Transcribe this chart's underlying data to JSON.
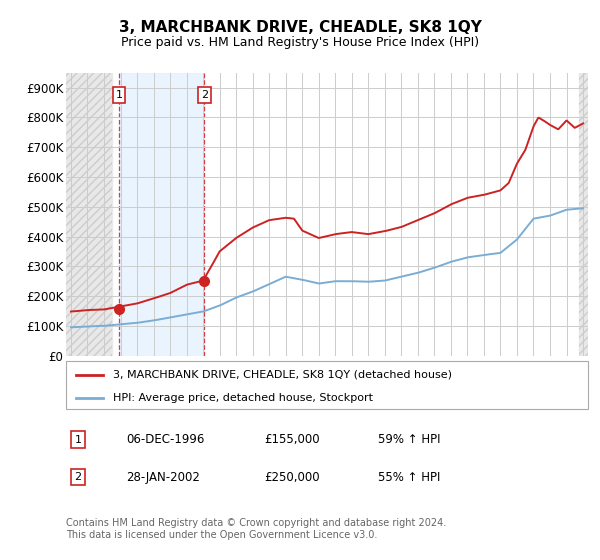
{
  "title": "3, MARCHBANK DRIVE, CHEADLE, SK8 1QY",
  "subtitle": "Price paid vs. HM Land Registry's House Price Index (HPI)",
  "hpi_color": "#7aadd4",
  "price_color": "#cc2222",
  "marker_color": "#cc2222",
  "purchase1": {
    "date_x": 1996.92,
    "price": 155000,
    "label": "1",
    "date_str": "06-DEC-1996",
    "pct": "59% ↑ HPI"
  },
  "purchase2": {
    "date_x": 2002.08,
    "price": 250000,
    "label": "2",
    "date_str": "28-JAN-2002",
    "pct": "55% ↑ HPI"
  },
  "legend_line1": "3, MARCHBANK DRIVE, CHEADLE, SK8 1QY (detached house)",
  "legend_line2": "HPI: Average price, detached house, Stockport",
  "footer": "Contains HM Land Registry data © Crown copyright and database right 2024.\nThis data is licensed under the Open Government Licence v3.0.",
  "xlim_start": 1993.7,
  "xlim_end": 2025.3,
  "ylim": [
    0,
    950000
  ],
  "yticks": [
    0,
    100000,
    200000,
    300000,
    400000,
    500000,
    600000,
    700000,
    800000,
    900000
  ],
  "ytick_labels": [
    "£0",
    "£100K",
    "£200K",
    "£300K",
    "£400K",
    "£500K",
    "£600K",
    "£700K",
    "£800K",
    "£900K"
  ],
  "xticks": [
    1994,
    1995,
    1996,
    1997,
    1998,
    1999,
    2000,
    2001,
    2002,
    2003,
    2004,
    2005,
    2006,
    2007,
    2008,
    2009,
    2010,
    2011,
    2012,
    2013,
    2014,
    2015,
    2016,
    2017,
    2018,
    2019,
    2020,
    2021,
    2022,
    2023,
    2024,
    2025
  ],
  "hpi_years": [
    1994,
    1995,
    1996,
    1997,
    1998,
    1999,
    2000,
    2001,
    2002,
    2003,
    2004,
    2005,
    2006,
    2007,
    2008,
    2009,
    2010,
    2011,
    2012,
    2013,
    2014,
    2015,
    2016,
    2017,
    2018,
    2019,
    2020,
    2021,
    2022,
    2023,
    2024,
    2025
  ],
  "hpi_values": [
    95000,
    98000,
    100000,
    105000,
    110000,
    118000,
    128000,
    138000,
    148000,
    168000,
    195000,
    215000,
    240000,
    265000,
    255000,
    242000,
    250000,
    250000,
    248000,
    252000,
    265000,
    278000,
    295000,
    315000,
    330000,
    338000,
    345000,
    390000,
    460000,
    470000,
    490000,
    495000
  ],
  "red_years": [
    1994,
    1995,
    1996,
    1997,
    1998,
    1999,
    2000,
    2001,
    2002,
    2002.5,
    2003,
    2004,
    2005,
    2006,
    2007,
    2007.5,
    2008,
    2009,
    2010,
    2011,
    2012,
    2013,
    2014,
    2015,
    2016,
    2017,
    2018,
    2019,
    2020,
    2020.5,
    2021,
    2021.5,
    2022,
    2022.3,
    2022.6,
    2023,
    2023.5,
    2024,
    2024.5,
    2025
  ],
  "red_values": [
    148000,
    153000,
    155000,
    165000,
    175000,
    192000,
    210000,
    238000,
    252000,
    300000,
    350000,
    395000,
    430000,
    455000,
    463000,
    460000,
    420000,
    395000,
    408000,
    415000,
    408000,
    418000,
    432000,
    455000,
    478000,
    508000,
    530000,
    540000,
    555000,
    580000,
    645000,
    690000,
    770000,
    800000,
    790000,
    775000,
    760000,
    790000,
    765000,
    780000
  ]
}
